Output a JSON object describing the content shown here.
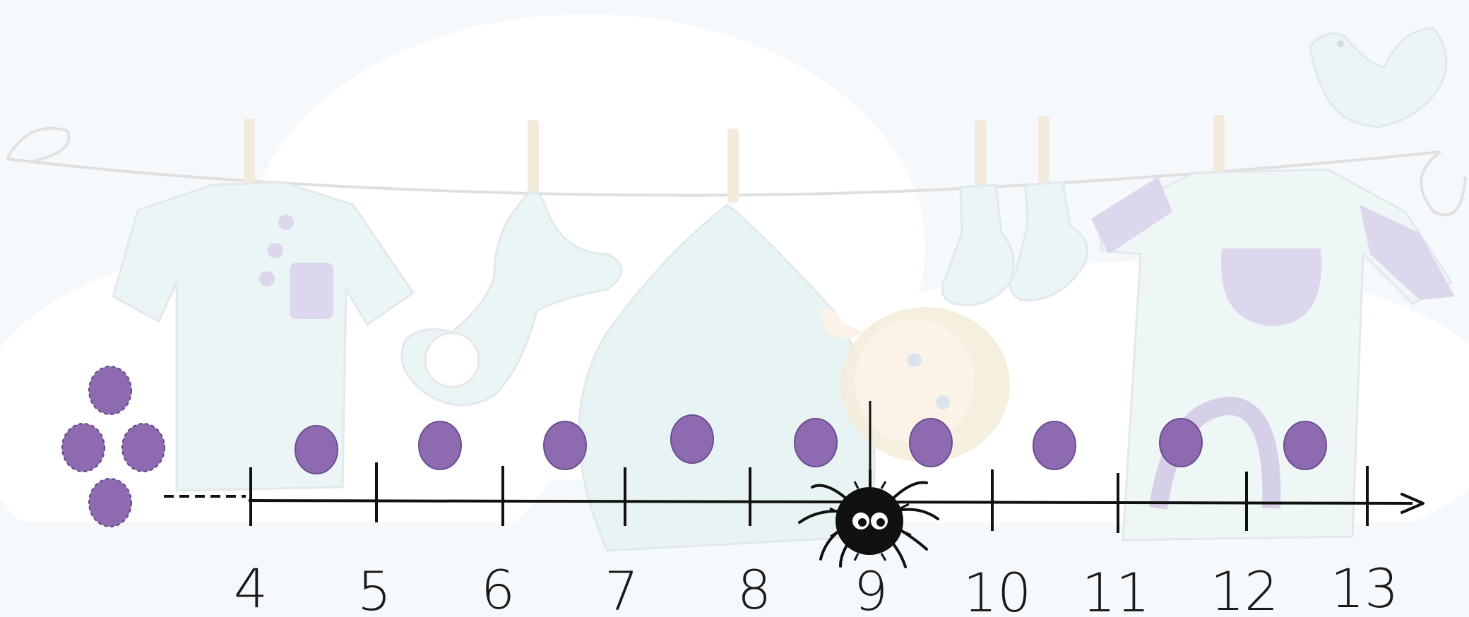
{
  "number_line": {
    "start_marks": [
      "4",
      "5",
      "6",
      "7",
      "8",
      "9",
      "10",
      "11",
      "12",
      "13"
    ],
    "spider_at": "9",
    "counter_color": "#8e6bb0",
    "line_color": "#111111"
  },
  "counters": {
    "group_of_four": 4,
    "between_marks": 9
  },
  "scene": {
    "background_color": "#f5f8fb",
    "clothes_color": "#e8f4f3",
    "accent_color": "#c9c3e3"
  }
}
